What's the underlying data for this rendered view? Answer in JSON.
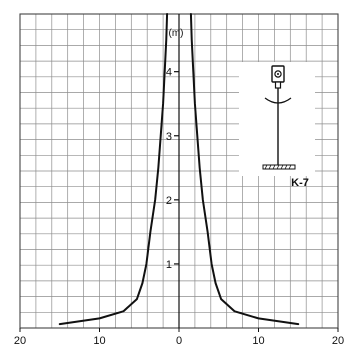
{
  "chart_data": {
    "type": "line",
    "title": "",
    "xlabel": "",
    "ylabel": "",
    "unit_label": "(m)",
    "xlim": [
      -20,
      20
    ],
    "ylim": [
      0,
      4.9
    ],
    "x_ticks": [
      {
        "value": -20,
        "label": "20"
      },
      {
        "value": -10,
        "label": "10"
      },
      {
        "value": 0,
        "label": "0"
      },
      {
        "value": 10,
        "label": "10"
      },
      {
        "value": 20,
        "label": "20"
      }
    ],
    "y_ticks": [
      {
        "value": 1,
        "label": "1"
      },
      {
        "value": 2,
        "label": "2"
      },
      {
        "value": 3,
        "label": "3"
      },
      {
        "value": 4,
        "label": "4"
      }
    ],
    "grid": true,
    "series": [
      {
        "color": "#111111",
        "points": [
          {
            "x": -15,
            "y": 0.06
          },
          {
            "x": -10,
            "y": 0.15
          },
          {
            "x": -7,
            "y": 0.26
          },
          {
            "x": -5.3,
            "y": 0.45
          },
          {
            "x": -4.6,
            "y": 0.7
          },
          {
            "x": -4.1,
            "y": 1.0
          },
          {
            "x": -3.6,
            "y": 1.5
          },
          {
            "x": -3.0,
            "y": 2.0
          },
          {
            "x": -2.6,
            "y": 2.5
          },
          {
            "x": -2.3,
            "y": 3.0
          },
          {
            "x": -2.0,
            "y": 3.5
          },
          {
            "x": -1.8,
            "y": 4.0
          },
          {
            "x": -1.6,
            "y": 4.5
          },
          {
            "x": -1.5,
            "y": 4.9
          }
        ]
      },
      {
        "color": "#111111",
        "points": [
          {
            "x": 1.5,
            "y": 4.9
          },
          {
            "x": 1.6,
            "y": 4.5
          },
          {
            "x": 1.8,
            "y": 4.0
          },
          {
            "x": 2.0,
            "y": 3.5
          },
          {
            "x": 2.3,
            "y": 3.0
          },
          {
            "x": 2.6,
            "y": 2.5
          },
          {
            "x": 3.0,
            "y": 2.0
          },
          {
            "x": 3.6,
            "y": 1.5
          },
          {
            "x": 4.1,
            "y": 1.0
          },
          {
            "x": 4.6,
            "y": 0.7
          },
          {
            "x": 5.3,
            "y": 0.45
          },
          {
            "x": 7,
            "y": 0.26
          },
          {
            "x": 10,
            "y": 0.15
          },
          {
            "x": 15,
            "y": 0.06
          }
        ]
      }
    ],
    "inset": {
      "label": "K-7",
      "icon": "microphone-on-stand-icon"
    }
  }
}
